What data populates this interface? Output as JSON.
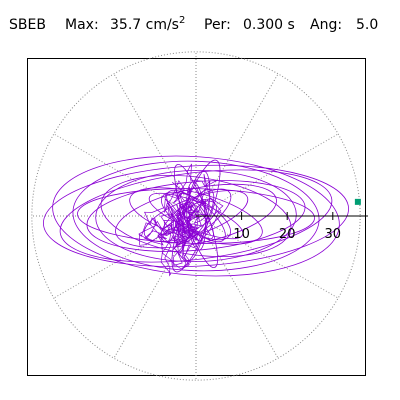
{
  "header": {
    "station": "SBEB",
    "max_label": "Max:",
    "max_value": "35.7",
    "max_unit": "cm/s",
    "max_exp": "2",
    "per_label": "Per:",
    "per_value": "0.300 s",
    "ang_label": "Ang:",
    "ang_value": "5.0"
  },
  "chart_data": {
    "type": "scatter",
    "subtype": "polar-orbit",
    "title": "SBEB  Max: 35.7 cm/s2  Per: 0.300 s  Ang: 5.0",
    "radial_ticks": [
      "10",
      "20",
      "30"
    ],
    "radial_tick_values": [
      10,
      20,
      30
    ],
    "rmax": 35.7,
    "max_marker": {
      "x": 35.5,
      "y": 3.1
    },
    "trace_color": "#8a00d4",
    "marker_color": "#009e73",
    "grid": true,
    "orbits": [
      {
        "a": 33.5,
        "b": 11.0,
        "rot": 3
      },
      {
        "a": 31.5,
        "b": 13.0,
        "rot": -4
      },
      {
        "a": 30.0,
        "b": 9.5,
        "rot": 7
      },
      {
        "a": 27.0,
        "b": 12.0,
        "rot": -2
      },
      {
        "a": 24.0,
        "b": 7.5,
        "rot": 5
      },
      {
        "a": 21.0,
        "b": 8.5,
        "rot": -8
      },
      {
        "a": 18.0,
        "b": 6.0,
        "rot": 12
      },
      {
        "a": 15.0,
        "b": 5.0,
        "rot": -15
      },
      {
        "a": 12.0,
        "b": 4.0,
        "rot": 20
      },
      {
        "a": 11.0,
        "b": 3.0,
        "rot": -22
      },
      {
        "a": 9.0,
        "b": 3.5,
        "rot": 35
      },
      {
        "a": 8.0,
        "b": 3.0,
        "rot": -40
      },
      {
        "a": 10.0,
        "b": 2.5,
        "rot": 80
      },
      {
        "a": 7.5,
        "b": 2.0,
        "rot": 95
      },
      {
        "a": 13.0,
        "b": 3.0,
        "rot": 70
      },
      {
        "a": 12.0,
        "b": 2.5,
        "rot": 110
      },
      {
        "a": 6.5,
        "b": 2.5,
        "rot": 60
      },
      {
        "a": 6.0,
        "b": 2.0,
        "rot": 125
      },
      {
        "a": 8.5,
        "b": 3.5,
        "rot": 150
      },
      {
        "a": 5.0,
        "b": 2.5,
        "rot": 30
      },
      {
        "a": 22.0,
        "b": 10.0,
        "rot": 1
      },
      {
        "a": 26.0,
        "b": 6.0,
        "rot": -1
      }
    ]
  }
}
